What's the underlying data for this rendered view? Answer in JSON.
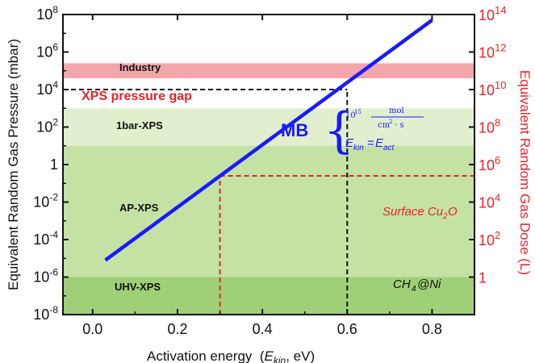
{
  "chart_data": {
    "type": "line",
    "xlabel": "Activation energy  (E_kin, eV)",
    "xlabel_parts": {
      "prefix": "Activation energy  (",
      "sym": "E",
      "sub": "kin",
      "suffix": ", eV)"
    },
    "ylabel": "Equivalent Random Gas Pressure  (mbar)",
    "y2label": "Equivalent Random Gas Dose  (L)",
    "xlim": [
      -0.07,
      0.9
    ],
    "ylim_log10": [
      -8,
      8
    ],
    "y2lim_log10": [
      -2,
      14
    ],
    "scale_y": "log",
    "x_ticks": [
      "0.0",
      "0.2",
      "0.4",
      "0.6",
      "0.8"
    ],
    "x_tick_values": [
      0.0,
      0.2,
      0.4,
      0.6,
      0.8
    ],
    "y_ticks": [
      {
        "e": 8,
        "text": "10",
        "sup": "8"
      },
      {
        "e": 6,
        "text": "10",
        "sup": "6"
      },
      {
        "e": 4,
        "text": "10",
        "sup": "4"
      },
      {
        "e": 2,
        "text": "10",
        "sup": "2"
      },
      {
        "e": 0,
        "text": "1",
        "sup": ""
      },
      {
        "e": -2,
        "text": "10",
        "sup": "-2"
      },
      {
        "e": -4,
        "text": "10",
        "sup": "-4"
      },
      {
        "e": -6,
        "text": "10",
        "sup": "-6"
      },
      {
        "e": -8,
        "text": "10",
        "sup": "-8"
      }
    ],
    "y2_ticks": [
      {
        "e": 14,
        "text": "10",
        "sup": "14"
      },
      {
        "e": 12,
        "text": "10",
        "sup": "12"
      },
      {
        "e": 10,
        "text": "10",
        "sup": "10"
      },
      {
        "e": 8,
        "text": "10",
        "sup": "8"
      },
      {
        "e": 6,
        "text": "10",
        "sup": "6"
      },
      {
        "e": 4,
        "text": "10",
        "sup": "4"
      },
      {
        "e": 2,
        "text": "10",
        "sup": "2"
      },
      {
        "e": 0,
        "text": "1",
        "sup": ""
      }
    ],
    "series": [
      {
        "name": "MB",
        "x": [
          0.03,
          0.8
        ],
        "y_log10": [
          -5.1,
          7.7
        ],
        "color": "#1a1aff"
      }
    ],
    "bands": [
      {
        "label": "Industry",
        "y_log10": [
          4.6,
          5.4
        ],
        "color": "#f2a6aa"
      },
      {
        "label": "1bar-XPS",
        "y_log10": [
          1,
          3
        ],
        "color": "#e2efcf"
      },
      {
        "label": "AP-XPS",
        "y_log10": [
          -6,
          1
        ],
        "color": "#c4e2a4"
      },
      {
        "label": "UHV-XPS",
        "y_log10": [
          -8,
          -6
        ],
        "color": "#9fd077"
      }
    ],
    "reference_lines": [
      {
        "name": "xps-gap-line",
        "color": "#111111",
        "x": [
          -0.07,
          0.6
        ],
        "y_log10": [
          4,
          4
        ]
      },
      {
        "name": "ch4-ni-line",
        "color": "#111111",
        "x": [
          0.6,
          0.6
        ],
        "y_log10": [
          -8,
          4
        ]
      },
      {
        "name": "cu2o-line",
        "color": "#e8242b",
        "x": [
          0.3,
          0.9
        ],
        "y_log10": [
          -0.6,
          -0.6
        ]
      },
      {
        "name": "cu2o-drop-line",
        "color": "#e8242b",
        "x": [
          0.3,
          0.3
        ],
        "y_log10": [
          -8,
          -0.6
        ]
      }
    ],
    "annotations": {
      "industry": "Industry",
      "xps_gap": "XPS pressure gap",
      "bar_xps": "1bar-XPS",
      "ap_xps": "AP-XPS",
      "uhv_xps": "UHV-XPS",
      "mb": "MB",
      "flux_coef": "10",
      "flux_exp": "15",
      "flux_num": "mol",
      "flux_den_a": "cm",
      "flux_den_exp": "2",
      "flux_den_b": " · s",
      "ekin_sym": "E",
      "ekin_sub": "kin",
      "eq": "=",
      "eact_sym": "E",
      "eact_sub": "act",
      "cu2o_a": "Surface Cu",
      "cu2o_sub": "2",
      "cu2o_b": "O",
      "ch4_a": "CH",
      "ch4_sub": "4",
      "ch4_b": "@Ni"
    },
    "colors": {
      "axis_right": "#e8242b",
      "mb": "#1a1aff",
      "gap": "#e8242b"
    }
  }
}
